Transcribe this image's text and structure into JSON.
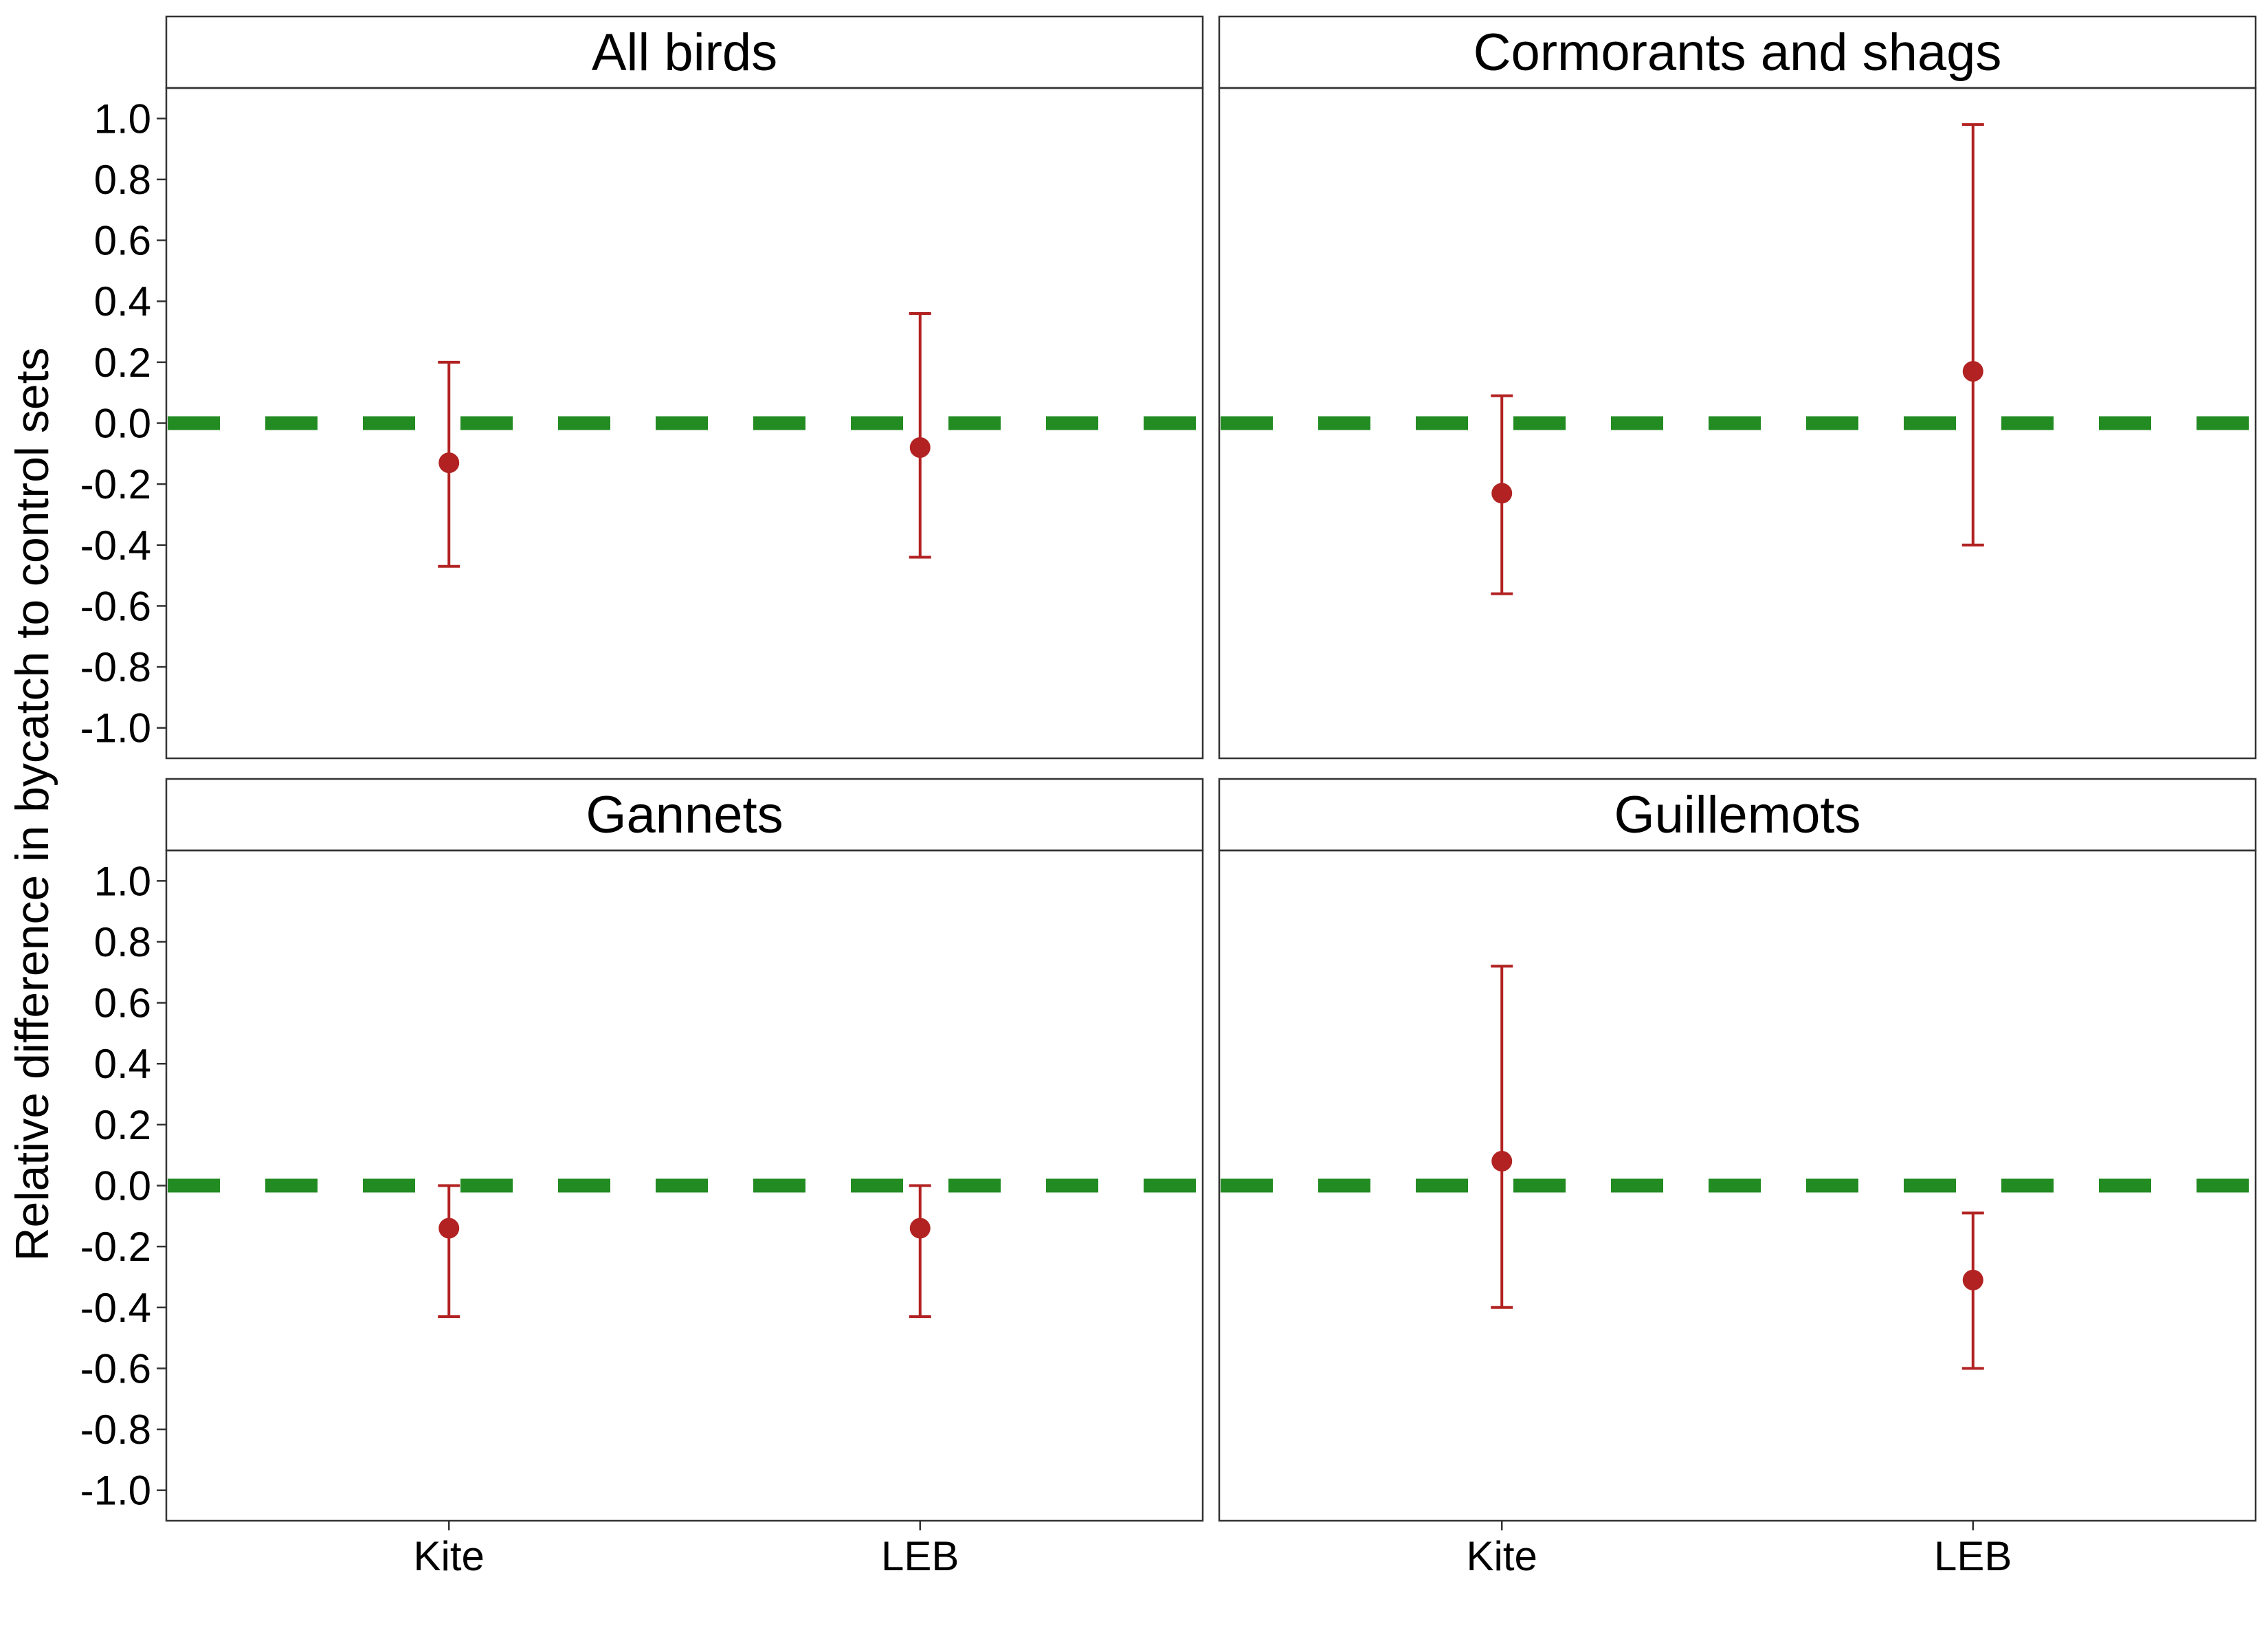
{
  "chart_data": {
    "type": "scatter",
    "subtype": "point-with-error-bars, faceted 2x2",
    "ylabel": "Relative difference in bycatch to control sets",
    "xlabel": "",
    "categories": [
      "Kite",
      "LEB"
    ],
    "ylim": [
      -1.1,
      1.1
    ],
    "yticks": [
      "1.0",
      "0.8",
      "0.6",
      "0.4",
      "0.2",
      "0.0",
      "-0.2",
      "-0.4",
      "-0.6",
      "-0.8",
      "-1.0"
    ],
    "ytick_values": [
      1.0,
      0.8,
      0.6,
      0.4,
      0.2,
      0.0,
      -0.2,
      -0.4,
      -0.6,
      -0.8,
      -1.0
    ],
    "reference_line": 0.0,
    "grid": false,
    "colors": {
      "point": "#b22222",
      "reference": "#228b22",
      "strip": "#ffffff"
    },
    "panels": [
      {
        "title": "All birds",
        "points": [
          {
            "x": "Kite",
            "y": -0.13,
            "lower": -0.47,
            "upper": 0.2
          },
          {
            "x": "LEB",
            "y": -0.08,
            "lower": -0.44,
            "upper": 0.36
          }
        ]
      },
      {
        "title": "Cormorants and shags",
        "points": [
          {
            "x": "Kite",
            "y": -0.23,
            "lower": -0.56,
            "upper": 0.09
          },
          {
            "x": "LEB",
            "y": 0.17,
            "lower": -0.4,
            "upper": 0.98
          }
        ]
      },
      {
        "title": "Gannets",
        "points": [
          {
            "x": "Kite",
            "y": -0.14,
            "lower": -0.43,
            "upper": 0.0
          },
          {
            "x": "LEB",
            "y": -0.14,
            "lower": -0.43,
            "upper": 0.0
          }
        ]
      },
      {
        "title": "Guillemots",
        "points": [
          {
            "x": "Kite",
            "y": 0.08,
            "lower": -0.4,
            "upper": 0.72
          },
          {
            "x": "LEB",
            "y": -0.31,
            "lower": -0.6,
            "upper": -0.09
          }
        ]
      }
    ]
  }
}
